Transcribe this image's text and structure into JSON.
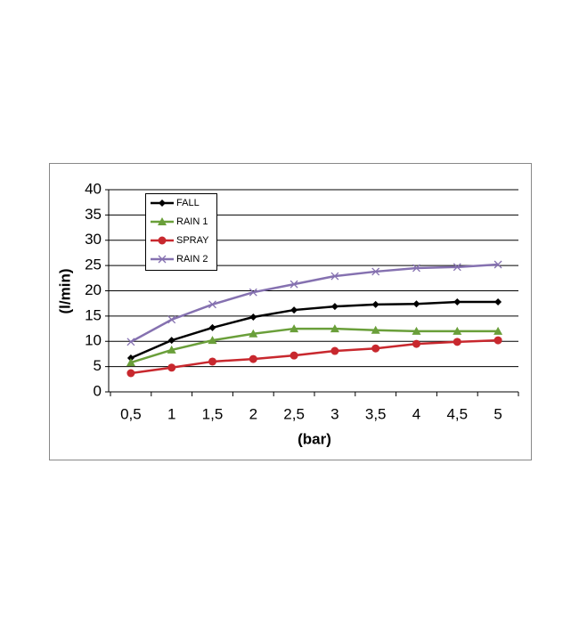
{
  "chart_data": {
    "type": "line",
    "x_label": "(bar)",
    "y_label": "(l/min)",
    "categories": [
      "0,5",
      "1",
      "1,5",
      "2",
      "2,5",
      "3",
      "3,5",
      "4",
      "4,5",
      "5"
    ],
    "series": [
      {
        "name": "FALL",
        "color": "#000000",
        "marker": "diamond",
        "values": [
          6.7,
          10.2,
          12.7,
          14.8,
          16.2,
          16.9,
          17.3,
          17.4,
          17.8,
          17.8
        ]
      },
      {
        "name": "RAIN 1",
        "color": "#6a9f3a",
        "marker": "triangle",
        "values": [
          5.8,
          8.3,
          10.2,
          11.5,
          12.5,
          12.5,
          12.2,
          12.0,
          12.0,
          12.0
        ]
      },
      {
        "name": "SPRAY",
        "color": "#c8282e",
        "marker": "circle",
        "values": [
          3.7,
          4.8,
          6.0,
          6.5,
          7.2,
          8.1,
          8.6,
          9.5,
          9.9,
          10.2
        ]
      },
      {
        "name": "RAIN 2",
        "color": "#8571b0",
        "marker": "x",
        "values": [
          9.9,
          14.3,
          17.3,
          19.7,
          21.3,
          22.9,
          23.8,
          24.5,
          24.7,
          25.2
        ]
      }
    ],
    "ylim": [
      0,
      40
    ],
    "yticks": [
      0,
      5,
      10,
      15,
      20,
      25,
      30,
      35,
      40
    ],
    "grid": true,
    "legend": "top-left"
  }
}
